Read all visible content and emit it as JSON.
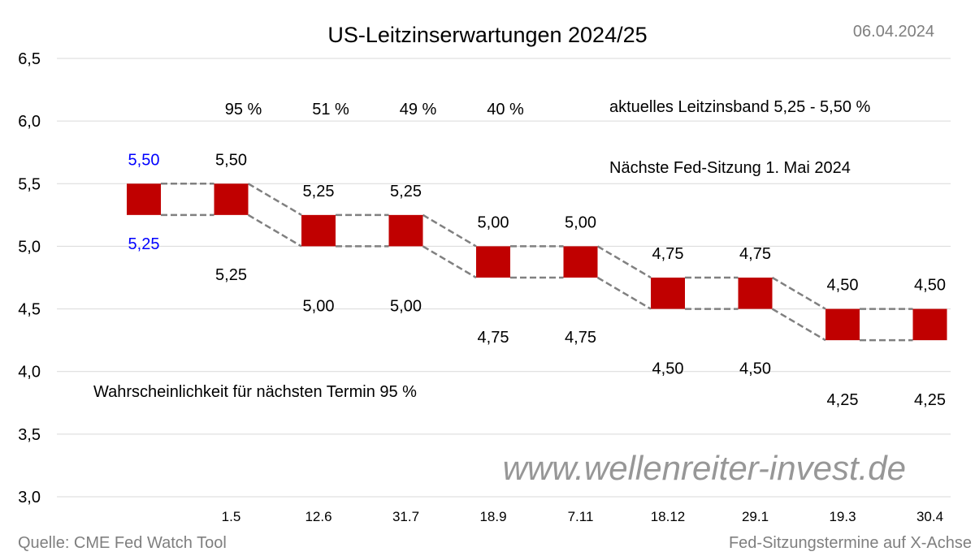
{
  "chart_data": {
    "type": "bar",
    "subtype": "floating-range",
    "title": "US-Leitzinserwartungen 2024/25",
    "date": "06.04.2024",
    "ylim": [
      3.0,
      6.5
    ],
    "yticks": [
      "6,5",
      "6,0",
      "5,5",
      "5,0",
      "4,5",
      "4,0",
      "3,5",
      "3,0"
    ],
    "ytick_values": [
      6.5,
      6.0,
      5.5,
      5.0,
      4.5,
      4.0,
      3.5,
      3.0
    ],
    "grid": true,
    "categories": [
      "",
      "1.5",
      "12.6",
      "31.7",
      "18.9",
      "7.11",
      "18.12",
      "29.1",
      "19.3",
      "30.4"
    ],
    "upper": [
      5.5,
      5.5,
      5.25,
      5.25,
      5.0,
      5.0,
      4.75,
      4.75,
      4.5,
      4.5
    ],
    "lower": [
      5.25,
      5.25,
      5.0,
      5.0,
      4.75,
      4.75,
      4.5,
      4.5,
      4.25,
      4.25
    ],
    "upper_labels": [
      "5,50",
      "5,50",
      "5,25",
      "5,25",
      "5,00",
      "5,00",
      "4,75",
      "4,75",
      "4,50",
      "4,50"
    ],
    "lower_labels": [
      "5,25",
      "5,25",
      "5,00",
      "5,00",
      "4,75",
      "4,75",
      "4,50",
      "4,50",
      "4,25",
      "4,25"
    ],
    "probabilities": [
      "",
      "95 %",
      "51 %",
      "49 %",
      "40 %",
      "",
      "",
      "",
      "",
      ""
    ],
    "annotations": {
      "current_band": "aktuelles Leitzinsband 5,25 - 5,50 %",
      "next_meeting": "Nächste Fed-Sitzung 1. Mai 2024",
      "probability_next": "Wahrscheinlichkeit für nächsten Termin 95 %",
      "watermark": "www.wellenreiter-invest.de"
    },
    "source": "Quelle: CME Fed Watch Tool",
    "xlabel": "Fed-Sitzungstermine auf X-Achse",
    "colors": {
      "bar": "#c00000",
      "current_label": "#0000ff",
      "label": "#000000",
      "dash": "#808080",
      "grid": "#d9d9d9",
      "muted": "#7f7f7f",
      "watermark": "#8c8c8c"
    }
  }
}
